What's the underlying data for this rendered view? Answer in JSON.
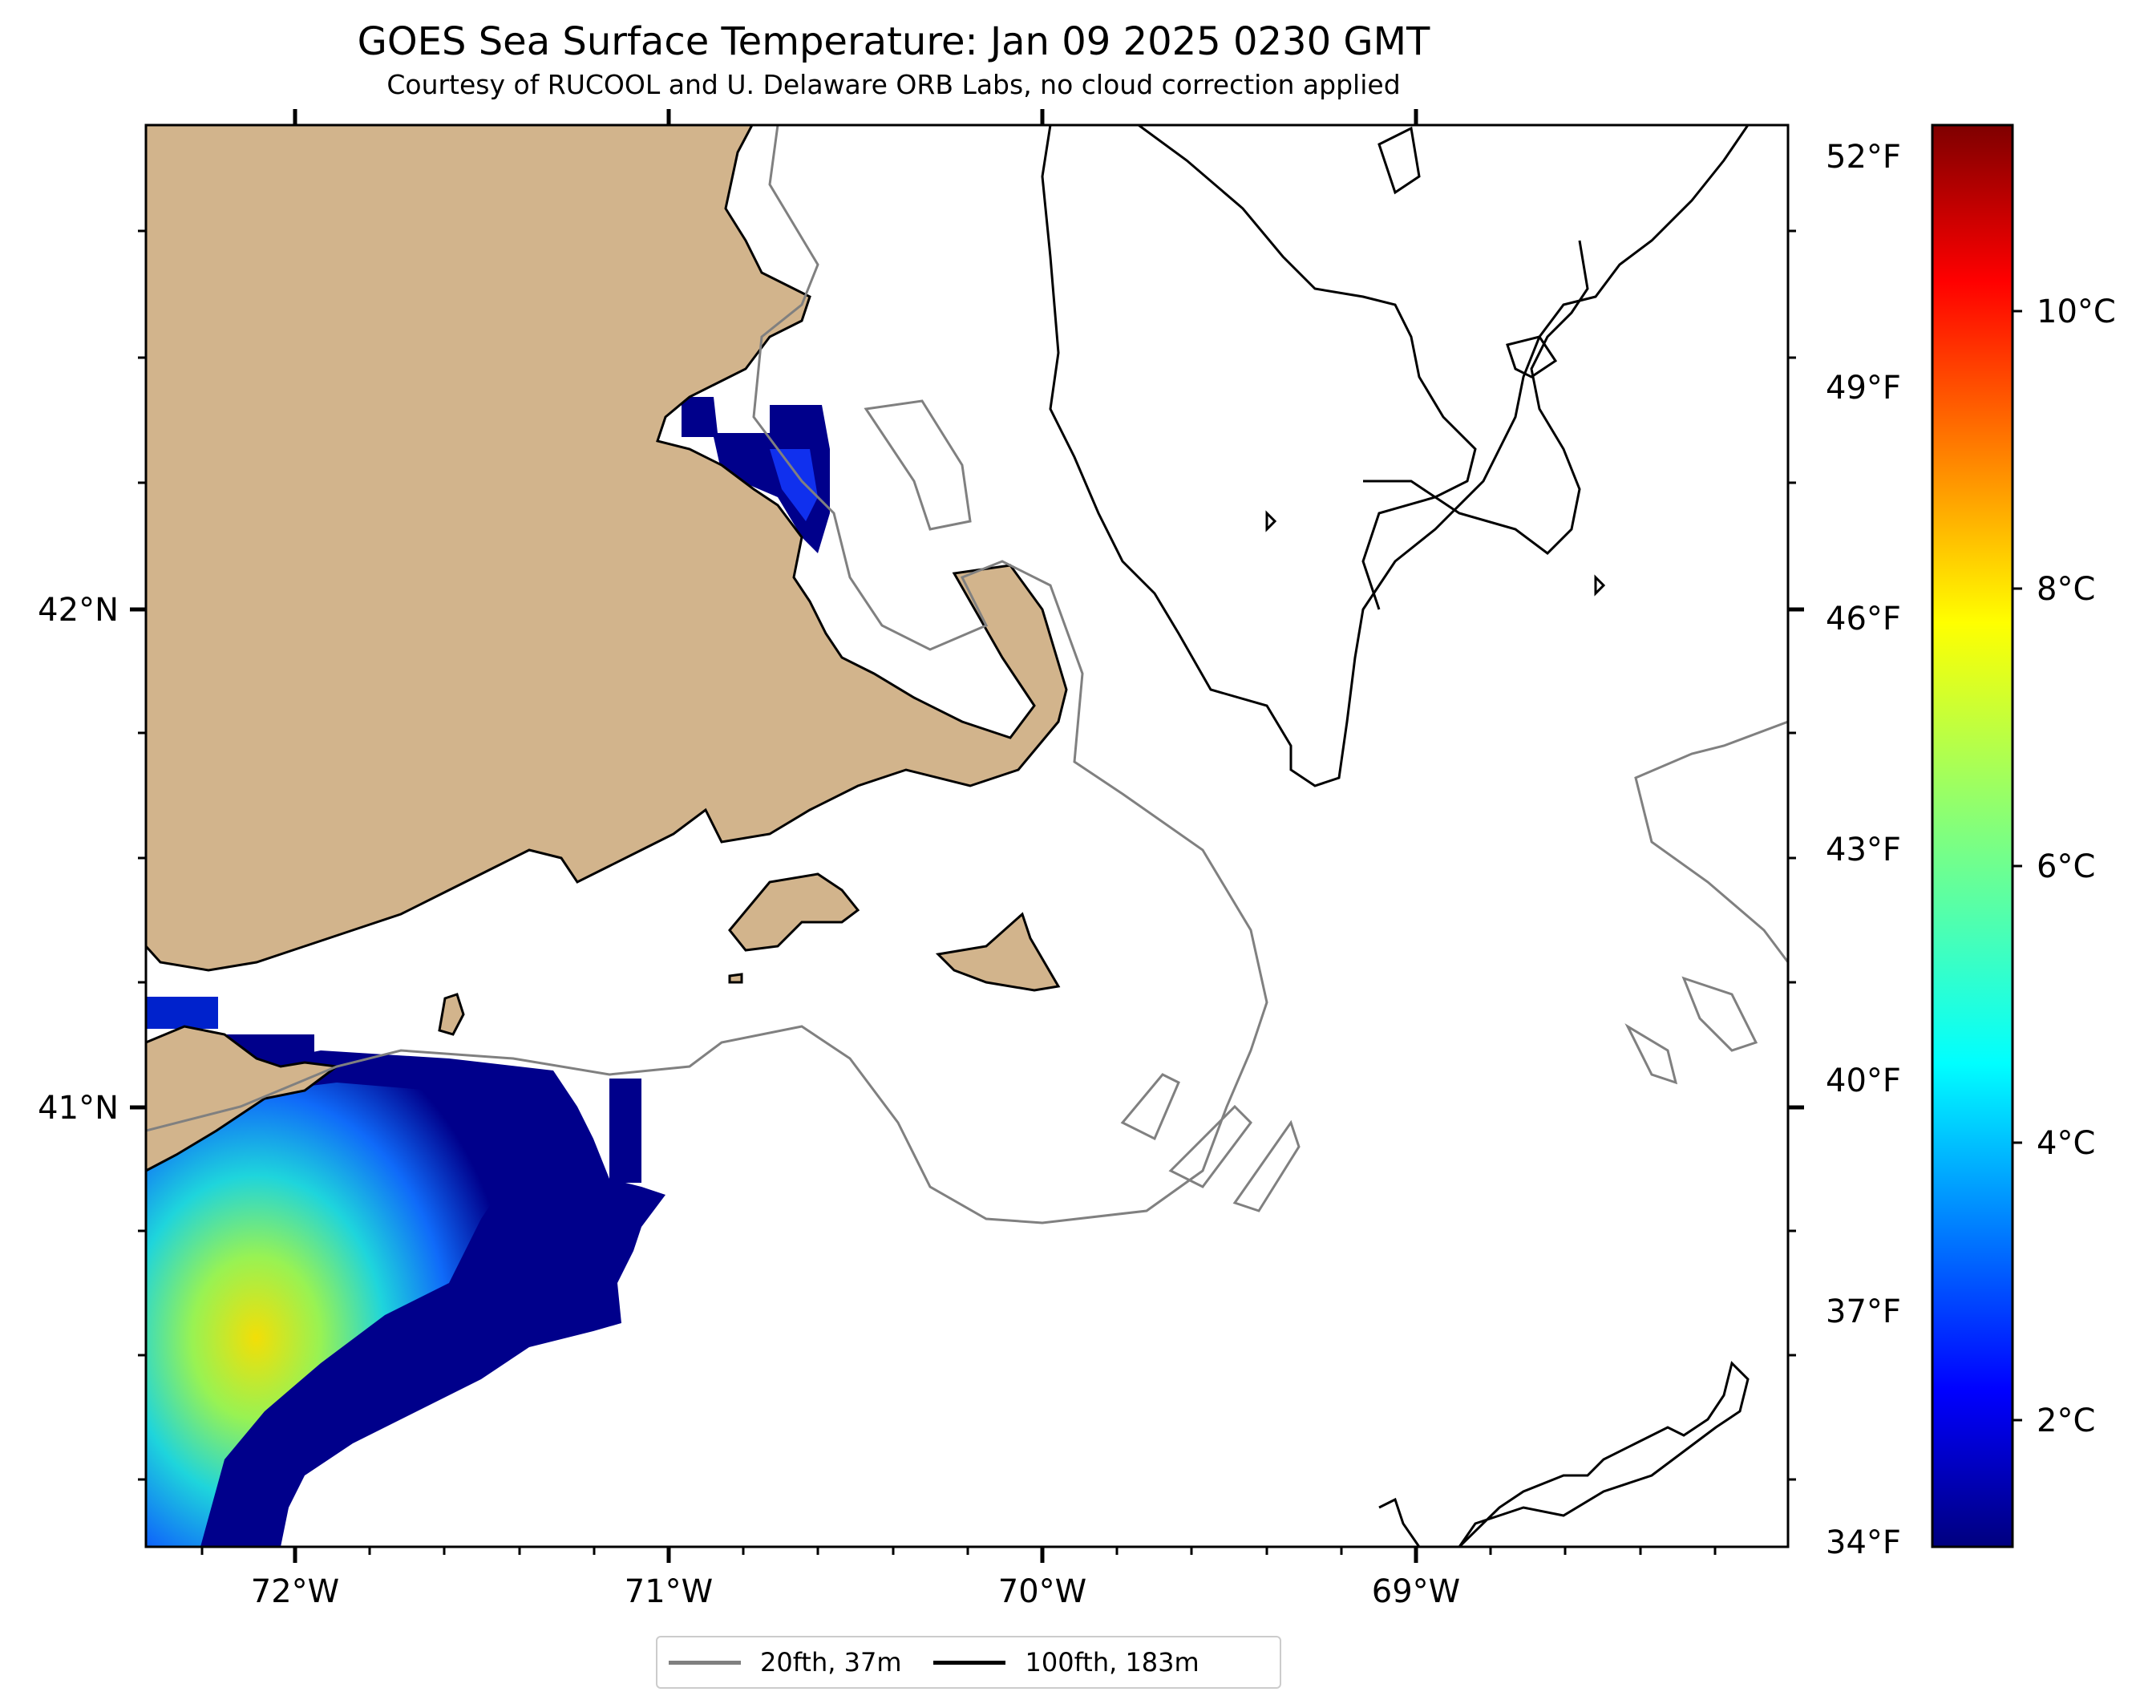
{
  "title": "GOES Sea Surface Temperature: Jan 09 2025 0230 GMT",
  "subtitle": "Courtesy of RUCOOL and U. Delaware ORB Labs, no cloud correction applied",
  "map": {
    "lon_labels": [
      "72°W",
      "71°W",
      "70°W",
      "69°W"
    ],
    "lat_labels": [
      "42°N",
      "41°N"
    ],
    "land_color": "#d2b48c",
    "coast_color": "#000000",
    "isobath_20fth_color": "#808080",
    "isobath_100fth_color": "#000000"
  },
  "right_axis": {
    "labels": [
      "52°F",
      "49°F",
      "46°F",
      "43°F",
      "40°F",
      "37°F",
      "34°F"
    ]
  },
  "colorbar": {
    "colormap": "jet",
    "labels": [
      "10°C",
      "8°C",
      "6°C",
      "4°C",
      "2°C"
    ]
  },
  "legend": {
    "items": [
      {
        "label": "20fth, 37m",
        "color": "#808080"
      },
      {
        "label": "100fth, 183m",
        "color": "#000000"
      }
    ]
  }
}
